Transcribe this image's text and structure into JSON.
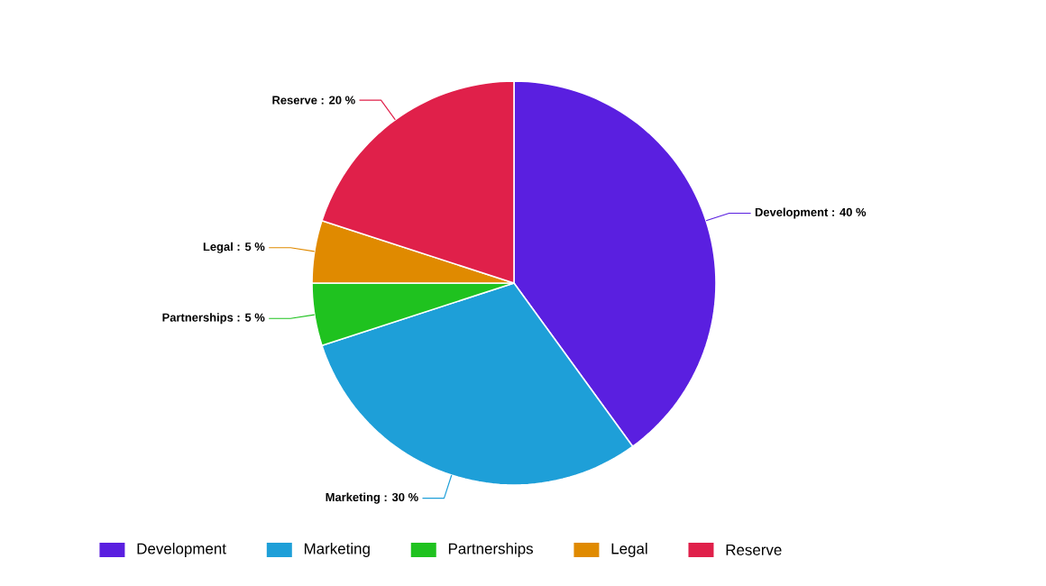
{
  "chart_data": {
    "type": "pie",
    "categories": [
      "Development",
      "Marketing",
      "Partnerships",
      "Legal",
      "Reserve"
    ],
    "values": [
      40,
      30,
      5,
      5,
      20
    ],
    "colors": [
      "#5a1fe0",
      "#1e9fd8",
      "#1fc21f",
      "#e08a00",
      "#e0204a"
    ],
    "value_labels": [
      "Development : 40 %",
      "Marketing : 30 %",
      "Partnerships : 5 %",
      "Legal : 5 %",
      "Reserve : 20 %"
    ],
    "legend": "bottom"
  }
}
